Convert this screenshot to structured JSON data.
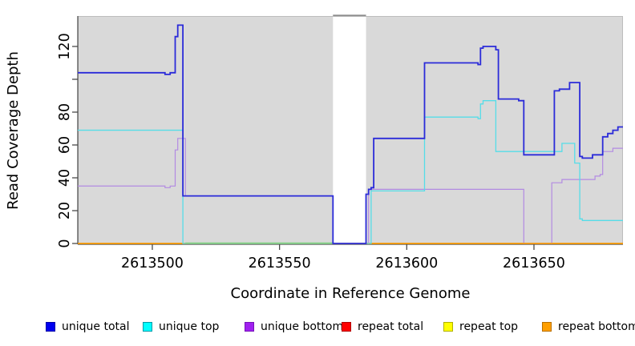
{
  "chart_data": {
    "type": "line",
    "style": "step-coverage",
    "title": "",
    "xlabel": "Coordinate in Reference Genome",
    "ylabel": "Read Coverage Depth",
    "x_range": [
      2613470.7,
      2613685
    ],
    "y_range": [
      0,
      139
    ],
    "grid": false,
    "legend_position": "bottom",
    "panel_bg": "#d9d9d9",
    "border_color": "#bdbdbd",
    "axis_color": "#4a4a4a",
    "x_ticks": [
      {
        "value": 2613500,
        "label": "2613500"
      },
      {
        "value": 2613550,
        "label": "2613550"
      },
      {
        "value": 2613600,
        "label": "2613600"
      },
      {
        "value": 2613650,
        "label": "2613650"
      }
    ],
    "y_ticks": [
      {
        "value": 0,
        "label": "0"
      },
      {
        "value": 20,
        "label": "20"
      },
      {
        "value": 40,
        "label": "40"
      },
      {
        "value": 60,
        "label": "60"
      },
      {
        "value": 80,
        "label": "80"
      },
      {
        "value": 100,
        "label": ""
      },
      {
        "value": 120,
        "label": "120"
      }
    ],
    "no_data_gap": {
      "x_start": 2613571,
      "x_end": 2613584,
      "cap_color": "#8c8c8c"
    },
    "zero_line_blend": {
      "x_start": 2613513,
      "x_end": 2613571,
      "color": "#7fd27f"
    },
    "series": [
      {
        "name": "unique total",
        "color": "#2b2bd9",
        "width": 1.8,
        "points": [
          [
            2613471,
            104
          ],
          [
            2613505,
            103
          ],
          [
            2613507,
            104
          ],
          [
            2613509,
            126
          ],
          [
            2613510,
            133
          ],
          [
            2613512,
            29
          ],
          [
            2613571,
            0
          ],
          [
            2613584,
            30
          ],
          [
            2613585,
            33
          ],
          [
            2613586,
            34
          ],
          [
            2613587,
            64
          ],
          [
            2613607,
            110
          ],
          [
            2613628,
            109
          ],
          [
            2613629,
            119
          ],
          [
            2613630,
            120
          ],
          [
            2613635,
            118
          ],
          [
            2613636,
            88
          ],
          [
            2613644,
            87
          ],
          [
            2613646,
            54
          ],
          [
            2613658,
            93
          ],
          [
            2613660,
            94
          ],
          [
            2613664,
            98
          ],
          [
            2613668,
            53
          ],
          [
            2613669,
            52
          ],
          [
            2613673,
            54
          ],
          [
            2613677,
            65
          ],
          [
            2613679,
            67
          ],
          [
            2613681,
            69
          ],
          [
            2613683,
            71
          ]
        ]
      },
      {
        "name": "unique top",
        "color": "#55dde8",
        "width": 1.3,
        "points": [
          [
            2613471,
            69
          ],
          [
            2613512,
            0
          ],
          [
            2613586,
            32
          ],
          [
            2613607,
            77
          ],
          [
            2613628,
            76
          ],
          [
            2613629,
            85
          ],
          [
            2613630,
            87
          ],
          [
            2613635,
            56
          ],
          [
            2613661,
            61
          ],
          [
            2613666,
            49
          ],
          [
            2613668,
            15
          ],
          [
            2613669,
            14
          ]
        ]
      },
      {
        "name": "unique bottom",
        "color": "#b28ae2",
        "width": 1.2,
        "points": [
          [
            2613471,
            35
          ],
          [
            2613505,
            34
          ],
          [
            2613507,
            35
          ],
          [
            2613509,
            57
          ],
          [
            2613510,
            64
          ],
          [
            2613513,
            29
          ],
          [
            2613571,
            0
          ],
          [
            2613585,
            33
          ],
          [
            2613646,
            0
          ],
          [
            2613657,
            37
          ],
          [
            2613661,
            39
          ],
          [
            2613674,
            41
          ],
          [
            2613676,
            42
          ],
          [
            2613677,
            56
          ],
          [
            2613681,
            58
          ]
        ]
      },
      {
        "name": "repeat total",
        "color": "#dd0000",
        "width": 1.2,
        "points": [
          [
            2613471,
            0
          ]
        ]
      },
      {
        "name": "repeat top",
        "color": "#f0f000",
        "width": 1.2,
        "points": [
          [
            2613471,
            0
          ]
        ]
      },
      {
        "name": "repeat bottom",
        "color": "#ff9d00",
        "width": 1.5,
        "points": [
          [
            2613471,
            0
          ]
        ]
      }
    ],
    "legend": [
      {
        "label": "unique total",
        "fill": "#0000f0",
        "border": "#0000a8"
      },
      {
        "label": "unique top",
        "fill": "#00ffff",
        "border": "#0098a8"
      },
      {
        "label": "unique bottom",
        "fill": "#a020f0",
        "border": "#7612b8"
      },
      {
        "label": "repeat total",
        "fill": "#ff0000",
        "border": "#b00000"
      },
      {
        "label": "repeat top",
        "fill": "#ffff00",
        "border": "#b0b000"
      },
      {
        "label": "repeat bottom",
        "fill": "#ff9f00",
        "border": "#b86f00"
      }
    ]
  }
}
